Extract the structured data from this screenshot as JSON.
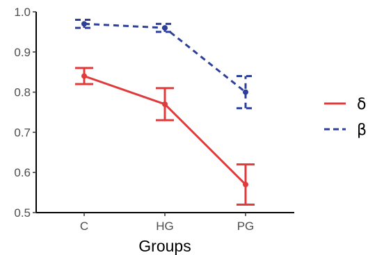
{
  "chart_data": {
    "type": "line",
    "title": "",
    "xlabel": "Groups",
    "ylabel": "",
    "categories": [
      "C",
      "HG",
      "PG"
    ],
    "ylim": [
      0.5,
      1.0
    ],
    "yticks": [
      0.5,
      0.6,
      0.7,
      0.8,
      0.9,
      1.0
    ],
    "grid": false,
    "legend_position": "right",
    "series": [
      {
        "name": "δ",
        "color": "#e03a3a",
        "line_style": "solid",
        "values": [
          0.84,
          0.77,
          0.57
        ],
        "error_low": [
          0.82,
          0.73,
          0.52
        ],
        "error_high": [
          0.86,
          0.81,
          0.62
        ]
      },
      {
        "name": "β",
        "color": "#2c3f9b",
        "line_style": "dashed",
        "values": [
          0.97,
          0.96,
          0.8
        ],
        "error_low": [
          0.96,
          0.95,
          0.76
        ],
        "error_high": [
          0.98,
          0.97,
          0.84
        ]
      }
    ]
  }
}
